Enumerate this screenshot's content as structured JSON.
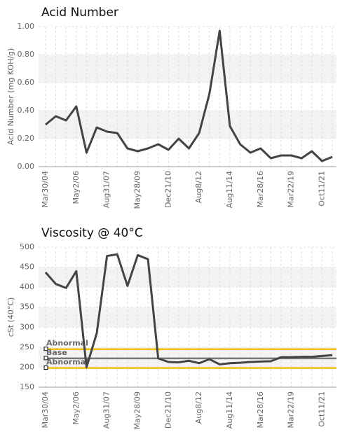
{
  "chart_data": [
    {
      "type": "line",
      "title": "Acid Number",
      "y_label": "Acid Number (mg KOH/g)",
      "categories": [
        "Mar30/04",
        null,
        null,
        "May2/06",
        null,
        null,
        "Aug31/07",
        null,
        null,
        "May28/09",
        null,
        null,
        "Dec21/10",
        null,
        null,
        "Aug8/12",
        null,
        null,
        "Aug11/14",
        null,
        null,
        "Mar28/16",
        null,
        null,
        "Mar22/19",
        null,
        null,
        "Oct11/21",
        null
      ],
      "series": [
        {
          "color": "#444444",
          "values": [
            0.3,
            0.36,
            0.33,
            0.43,
            0.1,
            0.28,
            0.25,
            0.24,
            0.13,
            0.11,
            0.13,
            0.16,
            0.12,
            0.2,
            0.13,
            0.24,
            0.52,
            0.97,
            0.29,
            0.16,
            0.1,
            0.13,
            0.06,
            0.08,
            0.08,
            0.06,
            0.11,
            0.04,
            0.07
          ]
        }
      ],
      "ylim": [
        0,
        1
      ],
      "yticks": [
        {
          "value": 0,
          "label": "0.00"
        },
        {
          "value": 0.2,
          "label": "0.20"
        },
        {
          "value": 0.4,
          "label": "0.40"
        },
        {
          "value": 0.6,
          "label": "0.60"
        },
        {
          "value": 0.8,
          "label": "0.80"
        },
        {
          "value": 1,
          "label": "1.00"
        }
      ],
      "grid": true
    },
    {
      "type": "line",
      "title": "Viscosity @ 40°C",
      "y_label": "cSt (40°C)",
      "categories": [
        "Mar30/04",
        null,
        null,
        "May2/06",
        null,
        null,
        "Aug31/07",
        null,
        null,
        "May28/09",
        null,
        null,
        "Dec21/10",
        null,
        null,
        "Aug8/12",
        null,
        null,
        "Aug11/14",
        null,
        null,
        "Mar28/16",
        null,
        null,
        "Mar22/19",
        null,
        null,
        "Oct11/21",
        null
      ],
      "series": [
        {
          "color": "#444444",
          "values": [
            437,
            408,
            398,
            440,
            200,
            285,
            478,
            482,
            403,
            480,
            470,
            222,
            213,
            212,
            216,
            210,
            220,
            207,
            210,
            211,
            213,
            214,
            215,
            225,
            225,
            226,
            226,
            228,
            230
          ]
        }
      ],
      "reference_lines": [
        {
          "label": "Abnormal",
          "value": 245,
          "color": "#f0c000"
        },
        {
          "label": "Base",
          "value": 222,
          "color": "#777777"
        },
        {
          "label": "Abnormal",
          "value": 198,
          "color": "#f0c000"
        }
      ],
      "ylim": [
        150,
        500
      ],
      "yticks": [
        150,
        200,
        250,
        300,
        350,
        400,
        450,
        500
      ],
      "grid": true
    }
  ]
}
